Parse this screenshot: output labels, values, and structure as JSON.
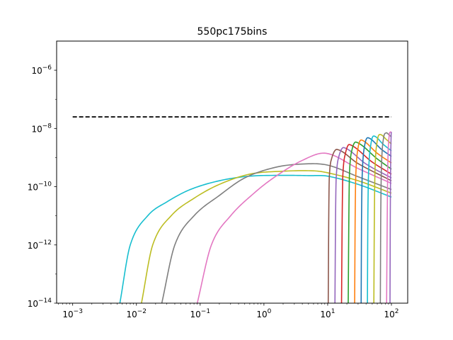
{
  "chart_data": {
    "type": "line",
    "title": "550pc175bins",
    "xlabel": "",
    "ylabel": "",
    "xscale": "log",
    "yscale": "log",
    "xlim": [
      0.00056,
      180
    ],
    "ylim": [
      1e-14,
      1e-05
    ],
    "grid": false,
    "x_ticks": [
      {
        "value": 0.001,
        "base": "10",
        "exp": "−3"
      },
      {
        "value": 0.01,
        "base": "10",
        "exp": "−2"
      },
      {
        "value": 0.1,
        "base": "10",
        "exp": "−1"
      },
      {
        "value": 1,
        "base": "10",
        "exp": "0"
      },
      {
        "value": 10,
        "base": "10",
        "exp": "1"
      },
      {
        "value": 100,
        "base": "10",
        "exp": "2"
      }
    ],
    "y_ticks": [
      {
        "value": 1e-14,
        "base": "10",
        "exp": "−14"
      },
      {
        "value": 1e-12,
        "base": "10",
        "exp": "−12"
      },
      {
        "value": 1e-10,
        "base": "10",
        "exp": "−10"
      },
      {
        "value": 1e-08,
        "base": "10",
        "exp": "−8"
      },
      {
        "value": 1e-06,
        "base": "10",
        "exp": "−6"
      }
    ],
    "reference_line": {
      "style": "dashed",
      "color": "#000000",
      "x": [
        0.001,
        100
      ],
      "y": [
        2.5e-08,
        2.5e-08
      ]
    },
    "series": [
      {
        "color": "#17becf",
        "points": [
          [
            0.0055,
            1e-14
          ],
          [
            0.008,
            1e-12
          ],
          [
            0.015,
            1e-11
          ],
          [
            0.03,
            3e-11
          ],
          [
            0.07,
            8e-11
          ],
          [
            0.2,
            1.6e-10
          ],
          [
            0.6,
            2.3e-10
          ],
          [
            2,
            2.45e-10
          ],
          [
            5,
            2.4e-10
          ],
          [
            10,
            2.3e-10
          ],
          [
            30,
            1.2e-10
          ],
          [
            100,
            4.4e-11
          ]
        ]
      },
      {
        "color": "#bcbd22",
        "points": [
          [
            0.012,
            1e-14
          ],
          [
            0.018,
            1e-12
          ],
          [
            0.035,
            1e-11
          ],
          [
            0.08,
            4e-11
          ],
          [
            0.2,
            1.2e-10
          ],
          [
            0.6,
            2.7e-10
          ],
          [
            2,
            3.4e-10
          ],
          [
            6,
            3.5e-10
          ],
          [
            10,
            3e-10
          ],
          [
            30,
            1.6e-10
          ],
          [
            100,
            6e-11
          ]
        ]
      },
      {
        "color": "#7f7f7f",
        "points": [
          [
            0.025,
            1e-14
          ],
          [
            0.04,
            1e-12
          ],
          [
            0.08,
            1e-11
          ],
          [
            0.2,
            5e-11
          ],
          [
            0.5,
            2e-10
          ],
          [
            1.5,
            4.6e-10
          ],
          [
            4,
            6e-10
          ],
          [
            10,
            5.5e-10
          ],
          [
            30,
            2.2e-10
          ],
          [
            100,
            8e-11
          ]
        ]
      },
      {
        "color": "#e377c2",
        "points": [
          [
            0.09,
            1e-14
          ],
          [
            0.15,
            1e-12
          ],
          [
            0.3,
            1e-11
          ],
          [
            0.7,
            6e-11
          ],
          [
            1.5,
            2.2e-10
          ],
          [
            4,
            8e-10
          ],
          [
            9.5,
            1.4e-09
          ],
          [
            30,
            4.2e-10
          ],
          [
            100,
            1.3e-10
          ]
        ]
      },
      {
        "color": "#8c564b",
        "points": [
          [
            10.2,
            1e-14
          ],
          [
            10.4,
            1e-11
          ],
          [
            10.6,
            2e-10
          ],
          [
            11.5,
            9e-10
          ],
          [
            14,
            1.9e-09
          ],
          [
            30,
            6.2e-10
          ],
          [
            100,
            1.6e-10
          ]
        ]
      },
      {
        "color": "#9467bd",
        "points": [
          [
            13,
            1e-14
          ],
          [
            13.3,
            1e-11
          ],
          [
            13.6,
            2e-10
          ],
          [
            15,
            1.1e-09
          ],
          [
            18,
            2.2e-09
          ],
          [
            40,
            6e-10
          ],
          [
            100,
            2e-10
          ]
        ]
      },
      {
        "color": "#d62728",
        "points": [
          [
            16.5,
            1e-14
          ],
          [
            16.9,
            1e-11
          ],
          [
            17.3,
            2.5e-10
          ],
          [
            19,
            1.4e-09
          ],
          [
            22,
            2.8e-09
          ],
          [
            50,
            7e-10
          ],
          [
            100,
            2.7e-10
          ]
        ]
      },
      {
        "color": "#2ca02c",
        "points": [
          [
            21,
            1e-14
          ],
          [
            21.5,
            1e-11
          ],
          [
            22,
            3e-10
          ],
          [
            24,
            1.8e-09
          ],
          [
            28,
            3.4e-09
          ],
          [
            60,
            9e-10
          ],
          [
            100,
            4e-10
          ]
        ]
      },
      {
        "color": "#ff7f0e",
        "points": [
          [
            26.5,
            1e-14
          ],
          [
            27,
            1e-11
          ],
          [
            27.7,
            3e-10
          ],
          [
            30,
            2.2e-09
          ],
          [
            34,
            4e-09
          ],
          [
            60,
            1.4e-09
          ],
          [
            100,
            6.5e-10
          ]
        ]
      },
      {
        "color": "#1f77b4",
        "points": [
          [
            33.5,
            1e-14
          ],
          [
            34,
            1e-11
          ],
          [
            35,
            3.5e-10
          ],
          [
            38,
            2.6e-09
          ],
          [
            43,
            4.8e-09
          ],
          [
            70,
            1.9e-09
          ],
          [
            100,
            1.1e-09
          ]
        ]
      },
      {
        "color": "#17becf",
        "points": [
          [
            42,
            1e-14
          ],
          [
            42.7,
            1e-11
          ],
          [
            44,
            4e-10
          ],
          [
            48,
            3.2e-09
          ],
          [
            53,
            5.5e-09
          ],
          [
            75,
            2.8e-09
          ],
          [
            100,
            1.7e-09
          ]
        ]
      },
      {
        "color": "#bcbd22",
        "points": [
          [
            53,
            1e-14
          ],
          [
            54,
            1e-11
          ],
          [
            55.5,
            5e-10
          ],
          [
            60,
            3.8e-09
          ],
          [
            66,
            6.2e-09
          ],
          [
            85,
            4e-09
          ],
          [
            100,
            2.9e-09
          ]
        ]
      },
      {
        "color": "#7f7f7f",
        "points": [
          [
            67,
            1e-14
          ],
          [
            68,
            1e-11
          ],
          [
            70,
            6e-10
          ],
          [
            75,
            4.5e-09
          ],
          [
            82,
            7e-09
          ],
          [
            92,
            6e-09
          ],
          [
            100,
            5.1e-09
          ]
        ]
      },
      {
        "color": "#e377c2",
        "points": [
          [
            84,
            1e-14
          ],
          [
            86,
            1e-11
          ],
          [
            88,
            8e-10
          ],
          [
            92,
            5.5e-09
          ],
          [
            96,
            7.5e-09
          ],
          [
            100,
            7.2e-09
          ]
        ]
      },
      {
        "color": "#9467bd",
        "points": [
          [
            95,
            1e-14
          ],
          [
            96,
            1e-11
          ],
          [
            97.5,
            1e-09
          ],
          [
            99,
            6e-09
          ],
          [
            100,
            7.5e-09
          ]
        ]
      }
    ]
  }
}
